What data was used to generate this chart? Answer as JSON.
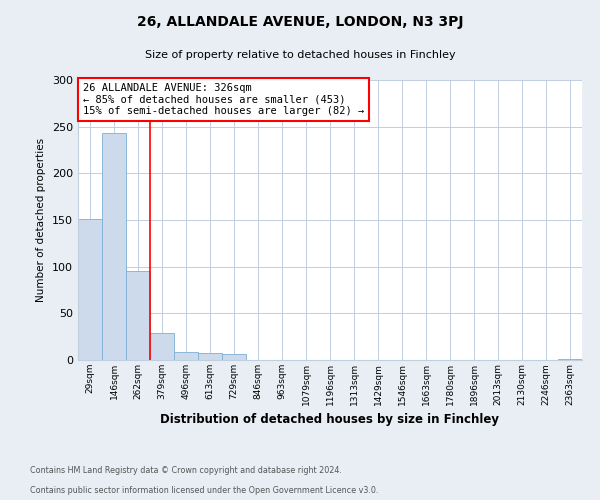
{
  "title": "26, ALLANDALE AVENUE, LONDON, N3 3PJ",
  "subtitle": "Size of property relative to detached houses in Finchley",
  "xlabel": "Distribution of detached houses by size in Finchley",
  "ylabel": "Number of detached properties",
  "bin_labels": [
    "29sqm",
    "146sqm",
    "262sqm",
    "379sqm",
    "496sqm",
    "613sqm",
    "729sqm",
    "846sqm",
    "963sqm",
    "1079sqm",
    "1196sqm",
    "1313sqm",
    "1429sqm",
    "1546sqm",
    "1663sqm",
    "1780sqm",
    "1896sqm",
    "2013sqm",
    "2130sqm",
    "2246sqm",
    "2363sqm"
  ],
  "bar_heights": [
    151,
    243,
    95,
    29,
    9,
    8,
    6,
    0,
    0,
    0,
    0,
    0,
    0,
    0,
    0,
    0,
    0,
    0,
    0,
    0,
    1
  ],
  "bar_color": "#ccdaeb",
  "bar_edge_color": "#7bafd4",
  "vline_color": "red",
  "ylim": [
    0,
    300
  ],
  "yticks": [
    0,
    50,
    100,
    150,
    200,
    250,
    300
  ],
  "annotation_title": "26 ALLANDALE AVENUE: 326sqm",
  "annotation_line1": "← 85% of detached houses are smaller (453)",
  "annotation_line2": "15% of semi-detached houses are larger (82) →",
  "footer1": "Contains HM Land Registry data © Crown copyright and database right 2024.",
  "footer2": "Contains public sector information licensed under the Open Government Licence v3.0.",
  "bg_color": "#e8eef4",
  "plot_bg_color": "#ffffff",
  "grid_color": "#c0cfe0"
}
